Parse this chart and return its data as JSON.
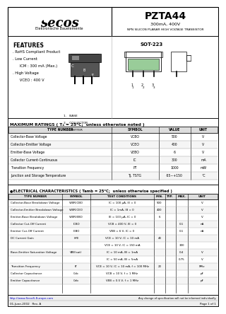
{
  "title": "PZTA44",
  "subtitle": "300mA, 400V",
  "description": "NPN SILICON PLANAR HIGH VOLTAGE TRANSISTOR",
  "company_logo": "secos",
  "company_sub": "Elektronische Bauelemente",
  "features_title": "FEATURES",
  "features": [
    ". RoHS Compliant Product",
    ". Low Current",
    "      ICM : 300 mA (Max.)",
    ". High Voltage",
    "      VCEO : 400 V"
  ],
  "package": "SOT-223",
  "pin_labels": [
    "1.   BASE",
    "2.   COLLECTOR",
    "3.   EMITTER"
  ],
  "max_ratings_title": "MAXIMUM RATINGS ( Tₐ = 25°C;  unless otherwise noted )",
  "max_ratings_headers": [
    "TYPE NUMBER",
    "SYMBOL",
    "VALUE",
    "UNIT"
  ],
  "max_ratings_rows": [
    [
      "Collector-Base Voltage",
      "VCBO",
      "500",
      "V"
    ],
    [
      "Collector-Emitter Voltage",
      "VCEO",
      "400",
      "V"
    ],
    [
      "Emitter-Base Voltage",
      "VEBO",
      "6",
      "V"
    ],
    [
      "Collector Current-Continuous",
      "IC",
      "300",
      "mA"
    ],
    [
      "Transition Frequency",
      "PT",
      "1000",
      "mW"
    ],
    [
      "Junction and Storage Temperature",
      "TJ, TSTG",
      "-55~+150",
      "°C"
    ]
  ],
  "elec_title": "●ELECTRICAL CHARACTERISTICS ( Tamb = 25°C;  unless otherwise specified )",
  "elec_headers": [
    "TYPE NUMBER",
    "SYMBOL",
    "TEST CONDITIONS",
    "MIN.",
    "TYP.",
    "MAX.",
    "UNIT"
  ],
  "elec_rows": [
    [
      "Collector-Base Breakdown Voltage",
      "V(BR)CBO",
      "IC = 100 μA, IE = 0",
      "500",
      "",
      "",
      "V"
    ],
    [
      "Collector-Emitter Breakdown Voltage",
      "V(BR)CEO",
      "IC = 1mA, IB = 0",
      "400",
      "",
      "",
      "V"
    ],
    [
      "Emitter-Base Breakdown Voltage",
      "V(BR)EBO",
      "IE = 100 μA, IC = 0",
      "6",
      "",
      "",
      "V"
    ],
    [
      "Collector Cut-Off Current",
      "ICBO",
      "VCB = 400 V, IE = 0",
      "",
      "",
      "0.1",
      "nA"
    ],
    [
      "Emitter Cut-Off Current",
      "IEBO",
      "VEB = 6 V, IC = 0",
      "",
      "",
      "0.1",
      "nA"
    ],
    [
      "DC Current Gain",
      "hFE",
      "VCE = 10 V, IC = 10 mA",
      "40",
      "",
      "",
      ""
    ],
    [
      "",
      "",
      "VCE = 10 V, IC = 150 mA",
      "",
      "",
      "300",
      ""
    ],
    [
      "Base-Emitter Saturation Voltage",
      "VBE(sat)",
      "IC = 10 mA, IB = 1mA",
      "",
      "",
      "0.4",
      "V"
    ],
    [
      "",
      "",
      "IC = 50 mA, IB = 5mA",
      "",
      "",
      "0.75",
      "V"
    ],
    [
      "Transition Frequency",
      "fT",
      "VCE = 10 V, IC = 10 mA, f = 100 MHz",
      "20",
      "",
      "",
      "MHz"
    ],
    [
      "Collector Capacitance",
      "Ccb",
      "VCB = 10 V, f = 1 MHz",
      "",
      "",
      "",
      "pF"
    ],
    [
      "Emitter Capacitance",
      "Ceb",
      "VEB = 0.5 V, f = 1 MHz",
      "",
      "",
      "",
      "pF"
    ]
  ],
  "footer_url": "http://www.SecoS-Europe.com",
  "footer_note": "Any change of specification will not be informed individually.",
  "footer_date": "01-June-2002   Rev. A",
  "footer_page": "Page 1 of 1"
}
